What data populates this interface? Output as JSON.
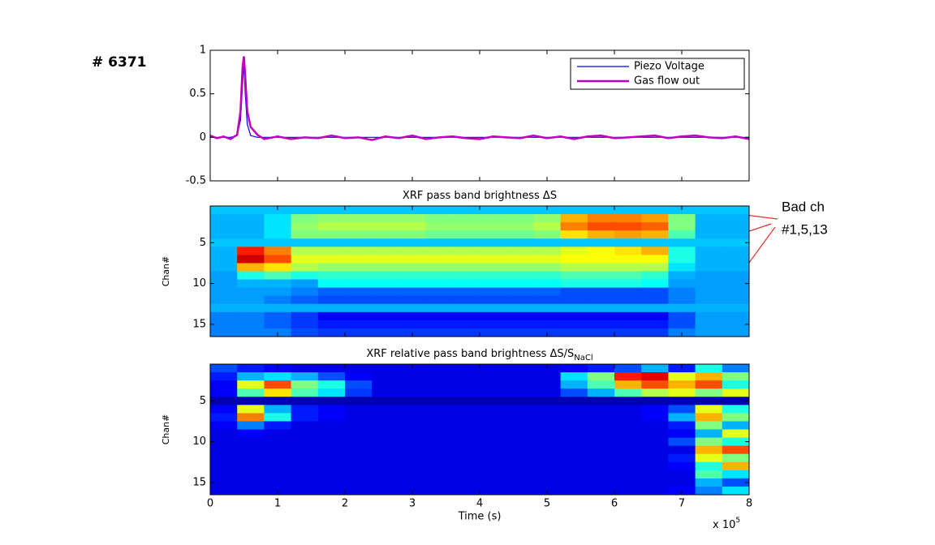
{
  "chart_data": [
    {
      "type": "line",
      "annotation": "# 6371",
      "x": [
        0,
        0.1,
        0.2,
        0.3,
        0.4,
        0.45,
        0.48,
        0.5,
        0.52,
        0.55,
        0.6,
        0.7,
        0.8,
        1.0,
        1.2,
        1.4,
        1.6,
        1.8,
        2.0,
        2.2,
        2.4,
        2.6,
        2.8,
        3.0,
        3.2,
        3.4,
        3.6,
        3.8,
        4.0,
        4.2,
        4.4,
        4.6,
        4.8,
        5.0,
        5.2,
        5.4,
        5.6,
        5.8,
        6.0,
        6.2,
        6.4,
        6.6,
        6.8,
        7.0,
        7.2,
        7.4,
        7.6,
        7.8,
        8.0
      ],
      "series": [
        {
          "name": "Piezo Voltage",
          "color": "#0000ff",
          "values": [
            0,
            0,
            0,
            0,
            0.02,
            0.2,
            0.6,
            0.85,
            0.5,
            0.15,
            0.02,
            0,
            0,
            0,
            0,
            0,
            0,
            0,
            0,
            0,
            0,
            0,
            0,
            0,
            0,
            0,
            0,
            0,
            0,
            0,
            0,
            0,
            0,
            0,
            0,
            0,
            0,
            0,
            0,
            0,
            0,
            0,
            0,
            0,
            0,
            0,
            0,
            0,
            0
          ]
        },
        {
          "name": "Gas flow out",
          "color": "#c000c0",
          "values": [
            0.02,
            -0.01,
            0.01,
            -0.02,
            0.03,
            0.3,
            0.8,
            0.93,
            0.7,
            0.3,
            0.12,
            0.03,
            -0.02,
            0.01,
            -0.02,
            0,
            -0.01,
            0.02,
            -0.01,
            0,
            -0.03,
            0.01,
            -0.01,
            0.02,
            -0.02,
            0,
            0.01,
            -0.01,
            -0.02,
            0.01,
            0,
            -0.01,
            0.02,
            -0.01,
            0.01,
            -0.02,
            0.01,
            0.02,
            -0.01,
            0,
            0.01,
            0.02,
            -0.01,
            0.01,
            0.02,
            0,
            -0.01,
            0.01,
            -0.02
          ]
        }
      ],
      "xlim": [
        0,
        8
      ],
      "xticks": [
        0,
        1,
        2,
        3,
        4,
        5,
        6,
        7,
        8
      ],
      "ylim": [
        -0.5,
        1
      ],
      "yticks": [
        1,
        0.5,
        0,
        -0.5
      ],
      "legend": "upper-right"
    },
    {
      "type": "heatmap",
      "title": "XRF pass band brightness ΔS",
      "ylabel": "Chan#",
      "colormap": "jet",
      "xlim": [
        0,
        8
      ],
      "xticks": [
        0,
        1,
        2,
        3,
        4,
        5,
        6,
        7,
        8
      ],
      "ylim": [
        0.5,
        16.5
      ],
      "yticks": [
        5,
        10,
        15
      ],
      "y_reversed": true,
      "annotation": [
        "Bad ch",
        "#1,5,13"
      ],
      "z": [
        [
          0.32,
          0.32,
          0.32,
          0.32,
          0.32,
          0.32,
          0.32,
          0.32,
          0.32,
          0.32,
          0.32,
          0.32,
          0.32,
          0.32,
          0.32,
          0.32,
          0.32,
          0.32,
          0.32,
          0.32
        ],
        [
          0.3,
          0.3,
          0.35,
          0.5,
          0.52,
          0.52,
          0.52,
          0.52,
          0.5,
          0.5,
          0.5,
          0.5,
          0.52,
          0.7,
          0.75,
          0.75,
          0.72,
          0.5,
          0.3,
          0.3
        ],
        [
          0.3,
          0.3,
          0.35,
          0.52,
          0.55,
          0.55,
          0.55,
          0.55,
          0.52,
          0.52,
          0.52,
          0.52,
          0.55,
          0.75,
          0.8,
          0.8,
          0.78,
          0.5,
          0.3,
          0.3
        ],
        [
          0.3,
          0.3,
          0.35,
          0.5,
          0.5,
          0.5,
          0.5,
          0.5,
          0.48,
          0.48,
          0.48,
          0.48,
          0.5,
          0.65,
          0.7,
          0.72,
          0.7,
          0.45,
          0.3,
          0.3
        ],
        [
          0.32,
          0.32,
          0.32,
          0.32,
          0.32,
          0.32,
          0.32,
          0.32,
          0.32,
          0.32,
          0.32,
          0.32,
          0.32,
          0.32,
          0.32,
          0.32,
          0.32,
          0.32,
          0.32,
          0.32
        ],
        [
          0.3,
          0.85,
          0.75,
          0.55,
          0.55,
          0.55,
          0.55,
          0.55,
          0.55,
          0.55,
          0.55,
          0.55,
          0.55,
          0.6,
          0.62,
          0.65,
          0.7,
          0.4,
          0.3,
          0.3
        ],
        [
          0.3,
          0.92,
          0.8,
          0.6,
          0.6,
          0.6,
          0.6,
          0.6,
          0.6,
          0.6,
          0.6,
          0.6,
          0.6,
          0.62,
          0.62,
          0.62,
          0.62,
          0.4,
          0.3,
          0.3
        ],
        [
          0.3,
          0.7,
          0.65,
          0.55,
          0.52,
          0.52,
          0.52,
          0.52,
          0.52,
          0.52,
          0.52,
          0.52,
          0.52,
          0.55,
          0.55,
          0.55,
          0.55,
          0.35,
          0.3,
          0.3
        ],
        [
          0.28,
          0.4,
          0.45,
          0.4,
          0.42,
          0.42,
          0.42,
          0.42,
          0.42,
          0.42,
          0.42,
          0.42,
          0.42,
          0.45,
          0.45,
          0.45,
          0.42,
          0.3,
          0.28,
          0.28
        ],
        [
          0.28,
          0.3,
          0.3,
          0.28,
          0.38,
          0.38,
          0.38,
          0.38,
          0.38,
          0.38,
          0.38,
          0.38,
          0.38,
          0.4,
          0.4,
          0.4,
          0.38,
          0.28,
          0.28,
          0.28
        ],
        [
          0.28,
          0.28,
          0.28,
          0.25,
          0.22,
          0.22,
          0.22,
          0.22,
          0.22,
          0.22,
          0.22,
          0.22,
          0.22,
          0.2,
          0.2,
          0.2,
          0.2,
          0.25,
          0.28,
          0.28
        ],
        [
          0.28,
          0.28,
          0.25,
          0.22,
          0.2,
          0.2,
          0.2,
          0.2,
          0.2,
          0.2,
          0.2,
          0.2,
          0.2,
          0.2,
          0.2,
          0.2,
          0.2,
          0.25,
          0.28,
          0.28
        ],
        [
          0.3,
          0.3,
          0.3,
          0.3,
          0.3,
          0.3,
          0.3,
          0.3,
          0.3,
          0.3,
          0.3,
          0.3,
          0.3,
          0.3,
          0.3,
          0.3,
          0.3,
          0.3,
          0.3,
          0.3
        ],
        [
          0.25,
          0.25,
          0.22,
          0.18,
          0.12,
          0.12,
          0.12,
          0.12,
          0.12,
          0.12,
          0.12,
          0.12,
          0.12,
          0.12,
          0.12,
          0.12,
          0.12,
          0.2,
          0.28,
          0.28
        ],
        [
          0.25,
          0.25,
          0.22,
          0.18,
          0.15,
          0.15,
          0.15,
          0.15,
          0.15,
          0.15,
          0.15,
          0.15,
          0.15,
          0.15,
          0.15,
          0.15,
          0.15,
          0.2,
          0.28,
          0.28
        ],
        [
          0.25,
          0.25,
          0.25,
          0.2,
          0.18,
          0.18,
          0.18,
          0.18,
          0.18,
          0.18,
          0.18,
          0.18,
          0.18,
          0.18,
          0.18,
          0.18,
          0.18,
          0.25,
          0.28,
          0.28
        ]
      ]
    },
    {
      "type": "heatmap",
      "title": "XRF relative pass band brightness ΔS/S",
      "title_sub": "NaCl",
      "ylabel": "Chan#",
      "xlabel": "Time (s)",
      "colormap": "jet",
      "x_multiplier": {
        "base": "x 10",
        "exponent": "5"
      },
      "xlim": [
        0,
        8
      ],
      "xticks": [
        0,
        1,
        2,
        3,
        4,
        5,
        6,
        7,
        8
      ],
      "ylim": [
        0.5,
        16.5
      ],
      "yticks": [
        5,
        10,
        15
      ],
      "y_reversed": true,
      "z": [
        [
          0.2,
          0.15,
          0.12,
          0.1,
          0.1,
          0.1,
          0.1,
          0.1,
          0.1,
          0.1,
          0.1,
          0.1,
          0.1,
          0.12,
          0.15,
          0.2,
          0.3,
          0.15,
          0.4,
          0.25
        ],
        [
          0.15,
          0.3,
          0.35,
          0.3,
          0.2,
          0.12,
          0.1,
          0.1,
          0.1,
          0.1,
          0.1,
          0.1,
          0.1,
          0.35,
          0.5,
          0.85,
          0.9,
          0.6,
          0.7,
          0.5
        ],
        [
          0.12,
          0.6,
          0.8,
          0.5,
          0.4,
          0.2,
          0.1,
          0.1,
          0.1,
          0.1,
          0.1,
          0.1,
          0.1,
          0.3,
          0.45,
          0.7,
          0.8,
          0.7,
          0.8,
          0.4
        ],
        [
          0.12,
          0.45,
          0.65,
          0.45,
          0.35,
          0.18,
          0.1,
          0.1,
          0.1,
          0.1,
          0.1,
          0.1,
          0.1,
          0.2,
          0.3,
          0.45,
          0.55,
          0.6,
          0.5,
          0.6
        ],
        [
          0.05,
          0.05,
          0.05,
          0.05,
          0.05,
          0.05,
          0.05,
          0.05,
          0.05,
          0.05,
          0.05,
          0.05,
          0.05,
          0.05,
          0.05,
          0.05,
          0.05,
          0.05,
          0.05,
          0.05
        ],
        [
          0.12,
          0.6,
          0.3,
          0.15,
          0.12,
          0.1,
          0.1,
          0.1,
          0.1,
          0.1,
          0.1,
          0.1,
          0.1,
          0.1,
          0.1,
          0.1,
          0.12,
          0.2,
          0.6,
          0.4
        ],
        [
          0.15,
          0.75,
          0.4,
          0.15,
          0.12,
          0.1,
          0.1,
          0.1,
          0.1,
          0.1,
          0.1,
          0.1,
          0.1,
          0.1,
          0.1,
          0.1,
          0.12,
          0.3,
          0.7,
          0.5
        ],
        [
          0.12,
          0.25,
          0.15,
          0.1,
          0.1,
          0.1,
          0.1,
          0.1,
          0.1,
          0.1,
          0.1,
          0.1,
          0.1,
          0.1,
          0.1,
          0.1,
          0.1,
          0.15,
          0.5,
          0.3
        ],
        [
          0.1,
          0.12,
          0.1,
          0.1,
          0.1,
          0.1,
          0.1,
          0.1,
          0.1,
          0.1,
          0.1,
          0.1,
          0.1,
          0.1,
          0.1,
          0.1,
          0.1,
          0.12,
          0.3,
          0.6
        ],
        [
          0.1,
          0.1,
          0.1,
          0.1,
          0.1,
          0.1,
          0.1,
          0.1,
          0.1,
          0.1,
          0.1,
          0.1,
          0.1,
          0.1,
          0.1,
          0.1,
          0.1,
          0.2,
          0.5,
          0.4
        ],
        [
          0.1,
          0.1,
          0.1,
          0.1,
          0.1,
          0.1,
          0.1,
          0.1,
          0.1,
          0.1,
          0.1,
          0.1,
          0.1,
          0.1,
          0.1,
          0.1,
          0.1,
          0.1,
          0.7,
          0.8
        ],
        [
          0.1,
          0.1,
          0.1,
          0.1,
          0.1,
          0.1,
          0.1,
          0.1,
          0.1,
          0.1,
          0.1,
          0.1,
          0.1,
          0.1,
          0.1,
          0.1,
          0.1,
          0.15,
          0.6,
          0.5
        ],
        [
          0.1,
          0.1,
          0.1,
          0.1,
          0.1,
          0.1,
          0.1,
          0.1,
          0.1,
          0.1,
          0.1,
          0.1,
          0.1,
          0.1,
          0.1,
          0.1,
          0.1,
          0.12,
          0.4,
          0.7
        ],
        [
          0.1,
          0.1,
          0.1,
          0.1,
          0.1,
          0.1,
          0.1,
          0.1,
          0.1,
          0.1,
          0.1,
          0.1,
          0.1,
          0.1,
          0.1,
          0.1,
          0.1,
          0.1,
          0.45,
          0.35
        ],
        [
          0.1,
          0.1,
          0.1,
          0.1,
          0.1,
          0.1,
          0.1,
          0.1,
          0.1,
          0.1,
          0.1,
          0.1,
          0.1,
          0.1,
          0.1,
          0.1,
          0.1,
          0.1,
          0.3,
          0.2
        ],
        [
          0.1,
          0.1,
          0.1,
          0.1,
          0.1,
          0.1,
          0.1,
          0.1,
          0.1,
          0.1,
          0.1,
          0.1,
          0.1,
          0.1,
          0.1,
          0.1,
          0.1,
          0.12,
          0.25,
          0.35
        ]
      ]
    }
  ]
}
